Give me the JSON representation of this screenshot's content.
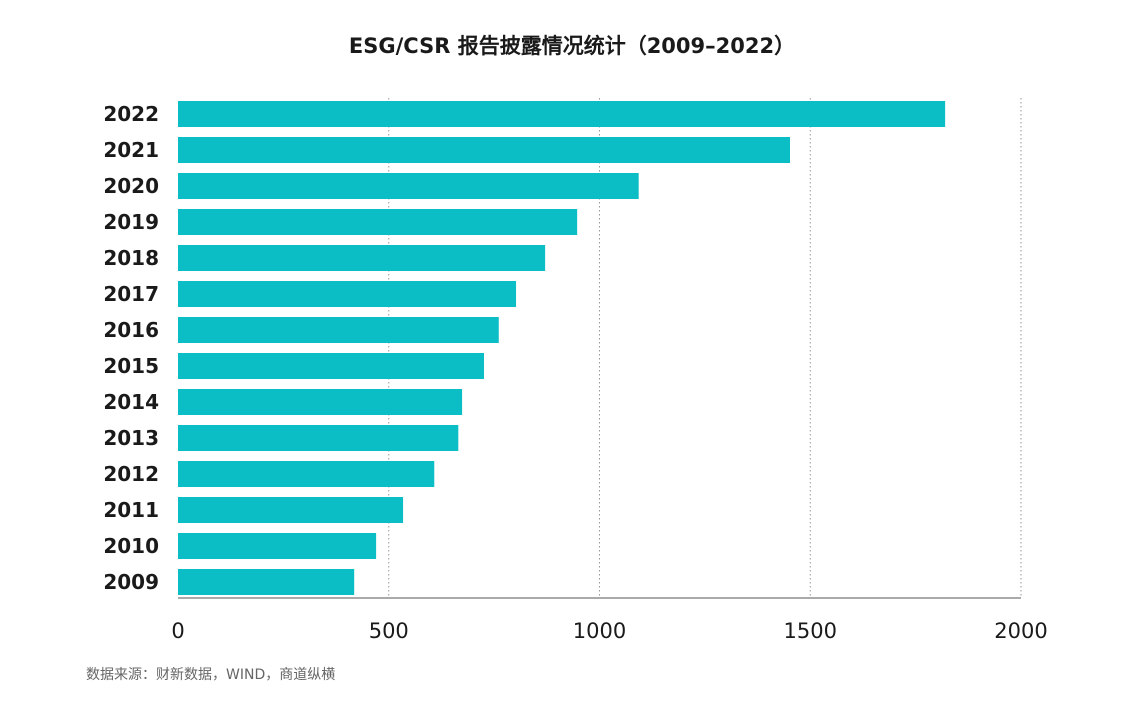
{
  "chart_data": {
    "type": "bar",
    "orientation": "horizontal",
    "title": "ESG/CSR 报告披露情况统计（2009–2022）",
    "categories": [
      "2022",
      "2021",
      "2020",
      "2019",
      "2018",
      "2017",
      "2016",
      "2015",
      "2014",
      "2013",
      "2012",
      "2011",
      "2010",
      "2009"
    ],
    "values": [
      1820,
      1452,
      1093,
      947,
      871,
      802,
      761,
      726,
      674,
      665,
      608,
      534,
      470,
      418
    ],
    "xlim": [
      0,
      2000
    ],
    "xticks": [
      "0",
      "500",
      "1000",
      "1500",
      "2000"
    ],
    "xtick_values": [
      0,
      500,
      1000,
      1500,
      2000
    ],
    "xlabel": "",
    "ylabel": "",
    "grid": "vertical dotted",
    "legend": "none",
    "bar_color": "#0bbec6"
  },
  "source_note": "数据来源：财新数据，WIND，商道纵横"
}
